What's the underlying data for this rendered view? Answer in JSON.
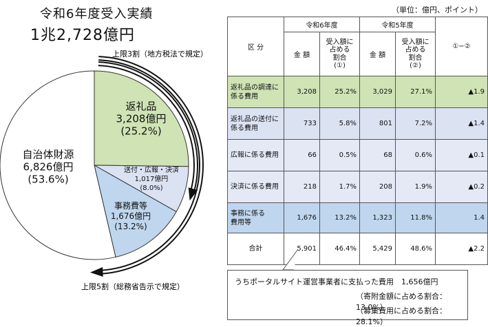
{
  "title_line1": "令和6年度受入実績",
  "title_line2": "1兆2,728億円",
  "annotation_upper3": "上限3割（地方税法で規定）",
  "annotation_upper5": "上限5割（総務省告示で規定）",
  "unit_note": "（単位：億円、ポイント）",
  "chart_data": {
    "type": "pie",
    "total": 12728,
    "slices": [
      {
        "name_lines": [
          "返礼品",
          "3,208億円",
          "(25.2%)"
        ],
        "value": 3208,
        "percent": 25.2,
        "color": "#cfe3b5"
      },
      {
        "name_lines": [
          "送付・広報・決済",
          "1,017億円",
          "(8.0%)"
        ],
        "value": 1017,
        "percent": 8.0,
        "color": "#dbe2f2"
      },
      {
        "name_lines": [
          "事務費等",
          "1,676億円",
          "(13.2%)"
        ],
        "value": 1676,
        "percent": 13.2,
        "color": "#bfd6ee"
      },
      {
        "name_lines": [
          "自治体財源",
          "6,826億円",
          "(53.6%)"
        ],
        "value": 6826,
        "percent": 53.6,
        "color": "#ffffff"
      }
    ],
    "limit_arcs": [
      {
        "label": "上限3割（地方税法で規定）",
        "percent": 30
      },
      {
        "label": "上限5割（総務省告示で規定）",
        "percent": 50
      }
    ]
  },
  "table": {
    "kubun_header": "区 分",
    "year6_header": "令和6年度",
    "year5_header": "令和5年度",
    "amount_header": "金 額",
    "share6_header": "受入額に\n占める\n割合\n(①)",
    "share5_header": "受入額に\n占める\n割合\n(②)",
    "diff_header": "①−②",
    "rows": [
      {
        "label": "返礼品の調達に\n係る費用",
        "amt6": "3,208",
        "pct6": "25.2%",
        "amt5": "3,029",
        "pct5": "27.1%",
        "diff": "▲1.9",
        "style": "green"
      },
      {
        "label": "返礼品の送付に\n係る費用",
        "amt6": "733",
        "pct6": "5.8%",
        "amt5": "801",
        "pct5": "7.2%",
        "diff": "▲1.4",
        "style": "blue1"
      },
      {
        "label": "広報に係る費用",
        "amt6": "66",
        "pct6": "0.5%",
        "amt5": "68",
        "pct5": "0.6%",
        "diff": "▲0.1",
        "style": "blue2"
      },
      {
        "label": "決済に係る費用",
        "amt6": "218",
        "pct6": "1.7%",
        "amt5": "208",
        "pct5": "1.9%",
        "diff": "▲0.2",
        "style": "blue2"
      },
      {
        "label": "事務に係る\n費用等",
        "amt6": "1,676",
        "pct6": "13.2%",
        "amt5": "1,323",
        "pct5": "11.8%",
        "diff": "1.4",
        "style": "blue3"
      },
      {
        "label": "合計",
        "amt6": "5,901",
        "pct6": "46.4%",
        "amt5": "5,429",
        "pct5": "48.6%",
        "diff": "▲2.2",
        "style": "plain"
      }
    ]
  },
  "note": {
    "line1": "うちポータルサイト運営事業者に支払った費用　1,656億円",
    "line2": "（寄附金額に占める割合：13.0%）",
    "line3": "（募集費用に占める割合：28.1%）"
  }
}
